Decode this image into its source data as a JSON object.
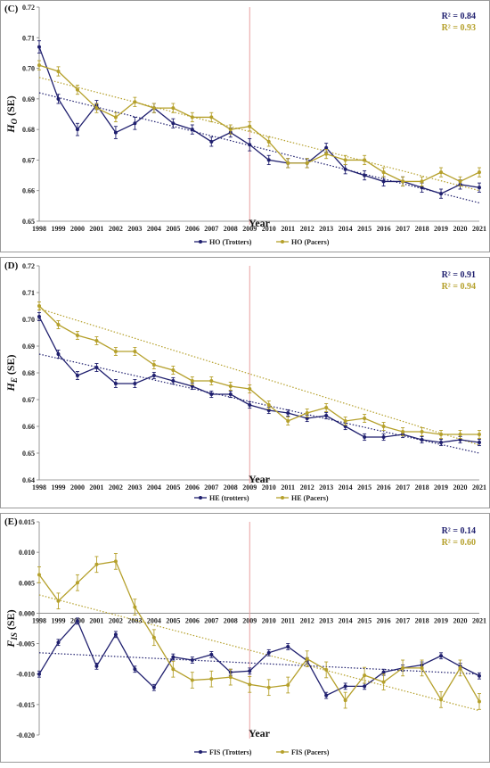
{
  "colors": {
    "trotters": "#1f1f6e",
    "pacers": "#b5a02b",
    "trotters_r2": "#1f1f6e",
    "pacers_r2": "#b5a02b",
    "reference_line": "#e8a0a0"
  },
  "chart_data": [
    {
      "type": "line",
      "panel_label": "(C)",
      "title": "",
      "xlabel": "Year",
      "ylabel_main": "H",
      "ylabel_sub": "O",
      "ylabel_suffix": " (SE)",
      "categories": [
        "1998",
        "1999",
        "2000",
        "2001",
        "2002",
        "2003",
        "2004",
        "2005",
        "2006",
        "2007",
        "2008",
        "2009",
        "2010",
        "2011",
        "2012",
        "2013",
        "2014",
        "2015",
        "2016",
        "2017",
        "2018",
        "2019",
        "2020",
        "2021"
      ],
      "ylim": [
        0.65,
        0.72
      ],
      "yticks": [
        0.65,
        0.66,
        0.67,
        0.68,
        0.69,
        0.7,
        0.71,
        0.72
      ],
      "ytick_labels": [
        "0.65",
        "0.66",
        "0.67",
        "0.68",
        "0.69",
        "0.70",
        "0.71",
        "0.72"
      ],
      "reference_year": "2009",
      "grid": false,
      "legend_position": "bottom",
      "r2_labels": [
        "R² = 0.84",
        "R² = 0.93"
      ],
      "series": [
        {
          "name": "HO (Trotters)",
          "values": [
            0.707,
            0.69,
            0.68,
            0.688,
            0.679,
            0.682,
            0.687,
            0.682,
            0.68,
            0.676,
            0.679,
            0.675,
            0.67,
            0.669,
            0.669,
            0.674,
            0.667,
            0.665,
            0.663,
            0.663,
            0.661,
            0.659,
            0.662,
            0.661
          ],
          "errors": [
            0.002,
            0.0015,
            0.002,
            0.0015,
            0.002,
            0.002,
            0.0015,
            0.0015,
            0.0015,
            0.0015,
            0.0015,
            0.002,
            0.0015,
            0.0015,
            0.0015,
            0.0015,
            0.0015,
            0.0015,
            0.0015,
            0.0015,
            0.0015,
            0.0015,
            0.0015,
            0.0015
          ],
          "trend": [
            0.692,
            0.656
          ]
        },
        {
          "name": "HO (Pacers)",
          "values": [
            0.701,
            0.699,
            0.693,
            0.687,
            0.684,
            0.689,
            0.687,
            0.687,
            0.684,
            0.684,
            0.68,
            0.681,
            0.676,
            0.669,
            0.669,
            0.672,
            0.67,
            0.67,
            0.666,
            0.663,
            0.663,
            0.666,
            0.663,
            0.666
          ],
          "errors": [
            0.0015,
            0.0015,
            0.0015,
            0.0015,
            0.0015,
            0.0015,
            0.0015,
            0.0015,
            0.0015,
            0.0015,
            0.0015,
            0.0015,
            0.0015,
            0.0015,
            0.0015,
            0.0015,
            0.0015,
            0.0015,
            0.0015,
            0.0015,
            0.0015,
            0.0015,
            0.0015,
            0.0015
          ],
          "trend": [
            0.697,
            0.66
          ]
        }
      ]
    },
    {
      "type": "line",
      "panel_label": "(D)",
      "title": "",
      "xlabel": "Year",
      "ylabel_main": "H",
      "ylabel_sub": "E",
      "ylabel_suffix": " (SE)",
      "categories": [
        "1998",
        "1999",
        "2000",
        "2001",
        "2002",
        "2003",
        "2004",
        "2005",
        "2006",
        "2007",
        "2008",
        "2009",
        "2010",
        "2011",
        "2012",
        "2013",
        "2014",
        "2015",
        "2016",
        "2017",
        "2018",
        "2019",
        "2020",
        "2021"
      ],
      "ylim": [
        0.64,
        0.72
      ],
      "yticks": [
        0.64,
        0.65,
        0.66,
        0.67,
        0.68,
        0.69,
        0.7,
        0.71,
        0.72
      ],
      "ytick_labels": [
        "0.64",
        "0.65",
        "0.66",
        "0.67",
        "0.68",
        "0.69",
        "0.70",
        "0.71",
        "0.72"
      ],
      "reference_year": "2009",
      "grid": false,
      "legend_position": "bottom",
      "r2_labels": [
        "R² = 0.91",
        "R² = 0.94"
      ],
      "series": [
        {
          "name": "HE (trotters)",
          "values": [
            0.701,
            0.687,
            0.679,
            0.682,
            0.676,
            0.676,
            0.679,
            0.677,
            0.675,
            0.672,
            0.672,
            0.668,
            0.666,
            0.665,
            0.663,
            0.664,
            0.66,
            0.656,
            0.656,
            0.657,
            0.655,
            0.654,
            0.655,
            0.654
          ],
          "errors": [
            0.0015,
            0.0015,
            0.0015,
            0.0015,
            0.0015,
            0.0015,
            0.0012,
            0.0012,
            0.0012,
            0.0012,
            0.0012,
            0.0012,
            0.0012,
            0.0012,
            0.0012,
            0.0012,
            0.0012,
            0.0012,
            0.0012,
            0.0012,
            0.0012,
            0.0012,
            0.0012,
            0.0012
          ],
          "trend": [
            0.687,
            0.65
          ]
        },
        {
          "name": "HE (Pacers)",
          "values": [
            0.705,
            0.698,
            0.694,
            0.692,
            0.688,
            0.688,
            0.683,
            0.681,
            0.677,
            0.677,
            0.675,
            0.674,
            0.668,
            0.662,
            0.665,
            0.667,
            0.662,
            0.663,
            0.66,
            0.658,
            0.658,
            0.657,
            0.657,
            0.657
          ],
          "errors": [
            0.0015,
            0.0015,
            0.0015,
            0.0015,
            0.0015,
            0.0015,
            0.0015,
            0.0015,
            0.0015,
            0.0015,
            0.0015,
            0.0015,
            0.0015,
            0.0015,
            0.0015,
            0.0015,
            0.0015,
            0.0015,
            0.0015,
            0.0015,
            0.0015,
            0.0015,
            0.0015,
            0.0015
          ],
          "trend": [
            0.704,
            0.653
          ]
        }
      ]
    },
    {
      "type": "line",
      "panel_label": "(E)",
      "title": "",
      "xlabel": "Year",
      "ylabel_main": "F",
      "ylabel_sub": "IS",
      "ylabel_suffix": " (SE)",
      "categories": [
        "1998",
        "1999",
        "2000",
        "2001",
        "2002",
        "2003",
        "2004",
        "2005",
        "2006",
        "2007",
        "2008",
        "2009",
        "2010",
        "2011",
        "2012",
        "2013",
        "2014",
        "2015",
        "2016",
        "2017",
        "2018",
        "2019",
        "2020",
        "2021"
      ],
      "ylim": [
        -0.02,
        0.015
      ],
      "yticks": [
        -0.02,
        -0.015,
        -0.01,
        -0.005,
        0.0,
        0.005,
        0.01,
        0.015
      ],
      "ytick_labels": [
        "-0.020",
        "-0.015",
        "-0.010",
        "-0.005",
        "0.000",
        "0.005",
        "0.010",
        "0.015"
      ],
      "reference_year": "2009",
      "grid": false,
      "legend_position": "bottom",
      "r2_labels": [
        "R² = 0.14",
        "R² = 0.60"
      ],
      "series": [
        {
          "name": "FIS (Trotters)",
          "values": [
            -0.01,
            -0.0048,
            -0.0013,
            -0.0087,
            -0.0035,
            -0.0092,
            -0.0122,
            -0.0072,
            -0.0077,
            -0.0068,
            -0.0097,
            -0.0095,
            -0.0065,
            -0.0055,
            -0.0078,
            -0.0135,
            -0.012,
            -0.012,
            -0.0097,
            -0.009,
            -0.0085,
            -0.007,
            -0.0087,
            -0.0103
          ],
          "errors": [
            0.0005,
            0.0005,
            0.0005,
            0.0005,
            0.0005,
            0.0005,
            0.0005,
            0.0005,
            0.0005,
            0.0005,
            0.0005,
            0.0005,
            0.0005,
            0.0005,
            0.0005,
            0.0005,
            0.0005,
            0.0005,
            0.0005,
            0.0005,
            0.0005,
            0.0005,
            0.0005,
            0.0005
          ],
          "trend": [
            -0.0065,
            -0.01
          ]
        },
        {
          "name": "FIS (Pacers)",
          "values": [
            0.0063,
            0.002,
            0.005,
            0.008,
            0.0085,
            0.001,
            -0.004,
            -0.0092,
            -0.011,
            -0.0108,
            -0.0105,
            -0.0117,
            -0.0122,
            -0.0118,
            -0.0075,
            -0.0093,
            -0.0143,
            -0.0102,
            -0.0113,
            -0.009,
            -0.009,
            -0.0142,
            -0.009,
            -0.0145
          ],
          "errors": [
            0.0013,
            0.0013,
            0.0013,
            0.0013,
            0.0013,
            0.0013,
            0.0013,
            0.0013,
            0.0013,
            0.0013,
            0.0013,
            0.0013,
            0.0013,
            0.0013,
            0.0013,
            0.0013,
            0.0013,
            0.0013,
            0.0013,
            0.0013,
            0.0013,
            0.0013,
            0.0013,
            0.0013
          ],
          "trend": [
            0.003,
            -0.016
          ]
        }
      ]
    }
  ]
}
